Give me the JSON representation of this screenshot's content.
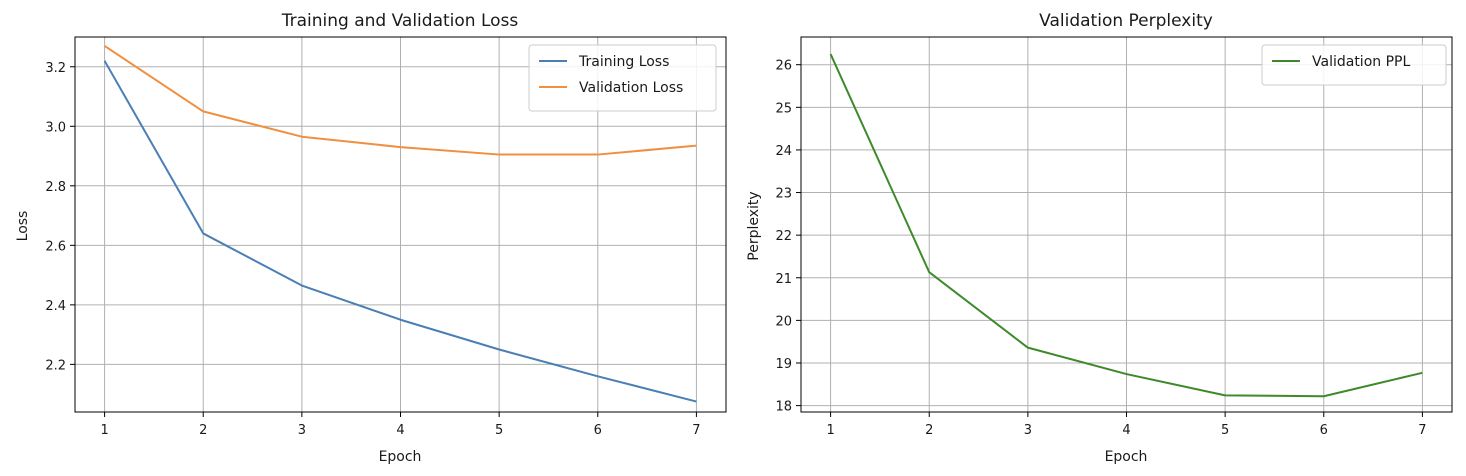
{
  "chart_data": [
    {
      "type": "line",
      "title": "Training and Validation Loss",
      "xlabel": "Epoch",
      "ylabel": "Loss",
      "x": [
        1,
        2,
        3,
        4,
        5,
        6,
        7
      ],
      "xlim": [
        0.7,
        7.3
      ],
      "ylim": [
        2.04,
        3.3
      ],
      "xticks": [
        1,
        2,
        3,
        4,
        5,
        6,
        7
      ],
      "yticks": [
        2.2,
        2.4,
        2.6,
        2.8,
        3.0,
        3.2
      ],
      "ytick_labels": [
        "2.2",
        "2.4",
        "2.6",
        "2.8",
        "3.0",
        "3.2"
      ],
      "grid": true,
      "legend_position": "top-right",
      "series": [
        {
          "name": "Training Loss",
          "color": "#4a7fb5",
          "values": [
            3.22,
            2.64,
            2.465,
            2.35,
            2.25,
            2.16,
            2.075
          ]
        },
        {
          "name": "Validation Loss",
          "color": "#ef8f3f",
          "values": [
            3.27,
            3.05,
            2.965,
            2.93,
            2.905,
            2.905,
            2.935
          ]
        }
      ]
    },
    {
      "type": "line",
      "title": "Validation Perplexity",
      "xlabel": "Epoch",
      "ylabel": "Perplexity",
      "x": [
        1,
        2,
        3,
        4,
        5,
        6,
        7
      ],
      "xlim": [
        0.7,
        7.3
      ],
      "ylim": [
        17.85,
        26.65
      ],
      "xticks": [
        1,
        2,
        3,
        4,
        5,
        6,
        7
      ],
      "yticks": [
        18,
        19,
        20,
        21,
        22,
        23,
        24,
        25,
        26
      ],
      "ytick_labels": [
        "18",
        "19",
        "20",
        "21",
        "22",
        "23",
        "24",
        "25",
        "26"
      ],
      "grid": true,
      "legend_position": "top-right",
      "series": [
        {
          "name": "Validation PPL",
          "color": "#3e8a2a",
          "values": [
            26.25,
            21.13,
            19.36,
            18.74,
            18.24,
            18.22,
            18.77
          ]
        }
      ]
    }
  ]
}
